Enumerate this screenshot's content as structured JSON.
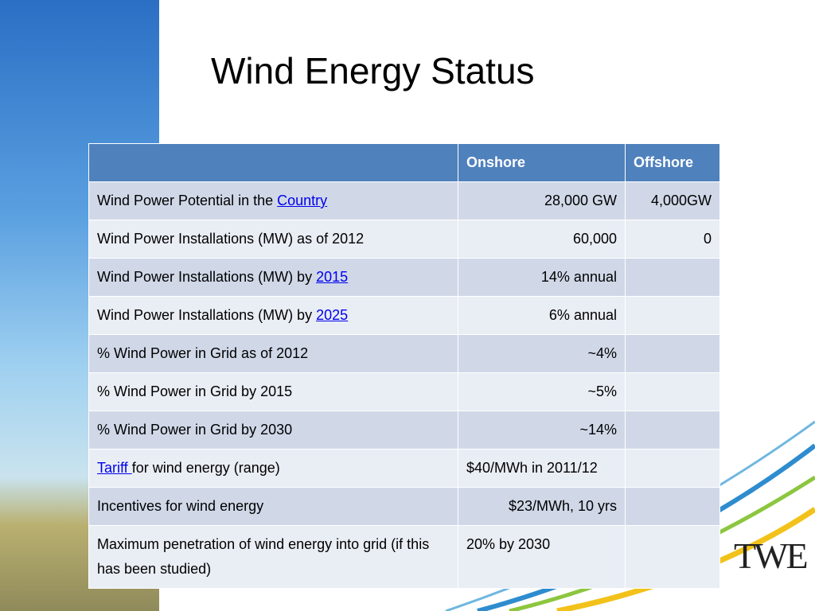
{
  "title": "Wind Energy Status",
  "logo": "TWE",
  "table": {
    "header": [
      null,
      "Onshore",
      "Offshore"
    ],
    "rows": [
      [
        [
          {
            "text": "Wind Power Potential in the "
          },
          {
            "text": "Country",
            "link": true
          }
        ],
        "28,000 GW",
        "4,000GW"
      ],
      [
        [
          {
            "text": "Wind Power Installations (MW) as of 2012"
          }
        ],
        "60,000",
        "0"
      ],
      [
        [
          {
            "text": "Wind Power Installations (MW) by "
          },
          {
            "text": "2015",
            "link": true
          }
        ],
        "14% annual",
        null
      ],
      [
        [
          {
            "text": "Wind Power Installations (MW) by "
          },
          {
            "text": "2025",
            "link": true
          }
        ],
        "6% annual",
        null
      ],
      [
        [
          {
            "text": "% Wind Power in Grid as of 2012"
          }
        ],
        "~4%",
        null
      ],
      [
        [
          {
            "text": "% Wind Power in Grid by 2015"
          }
        ],
        "~5%",
        null
      ],
      [
        [
          {
            "text": "% Wind Power in Grid by 2030"
          }
        ],
        "~14%",
        null
      ],
      [
        [
          {
            "text": "Tariff ",
            "link": true
          },
          {
            "text": "for wind energy (range)"
          }
        ],
        "$40/MWh in 2011/12",
        null
      ],
      [
        [
          {
            "text": "Incentives for wind energy"
          }
        ],
        "$23/MWh, 10 yrs",
        null
      ],
      [
        [
          {
            "text": "Maximum penetration of wind energy into grid (if this has been studied)"
          }
        ],
        "20% by 2030",
        null
      ]
    ],
    "align": [
      "left",
      "right",
      "right"
    ],
    "left_aligned_values": [
      7,
      9
    ]
  }
}
